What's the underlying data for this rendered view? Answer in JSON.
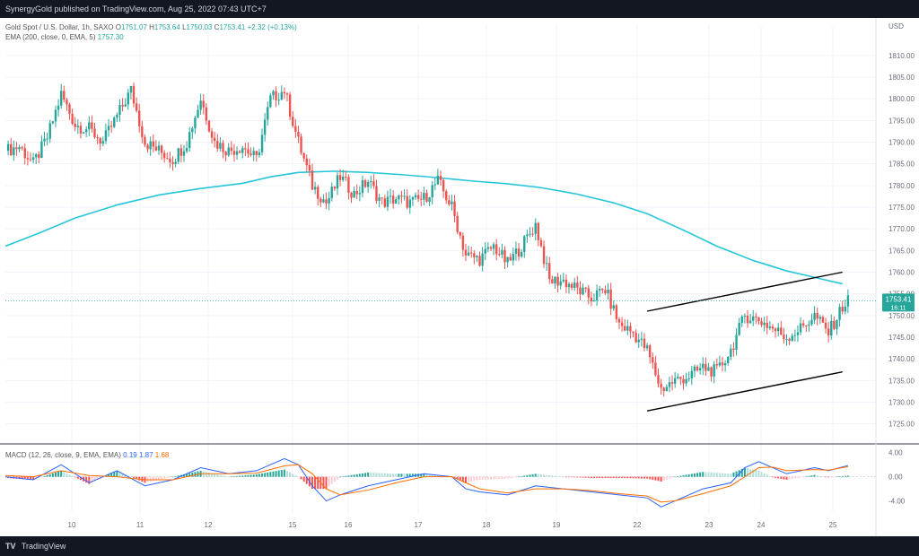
{
  "header": {
    "published": "SynergyGold published on TradingView.com, Aug 25, 2022 07:43 UTC+7"
  },
  "legend": {
    "symbol": "Gold Spot / U.S. Dollar, 1h, SAXO",
    "open_label": "O",
    "open": "1751.07",
    "high_label": "H",
    "high": "1753.64",
    "low_label": "L",
    "low": "1750.03",
    "close_label": "C",
    "close": "1753.41",
    "change": "+2.32 (+0.13%)",
    "ema_label": "EMA (200, close, 0, EMA, 5)",
    "ema_value": "1757.30",
    "macd_label": "MACD (12, 26, close, 9, EMA, EMA)",
    "macd_values": [
      "0.19",
      "1.87",
      "1.68"
    ]
  },
  "price_tag": {
    "price": "1753.41",
    "countdown": "16:11"
  },
  "footer": {
    "brand": "TradingView"
  },
  "colors": {
    "up": "#26a69a",
    "down": "#ef5350",
    "ema": "#26c6da",
    "macd": "#2962ff",
    "signal": "#ff6d00",
    "channel": "#000000"
  },
  "chart_data": {
    "type": "candlestick",
    "currency": "USD",
    "y_ticks": [
      "1810.00",
      "1805.00",
      "1800.00",
      "1795.00",
      "1790.00",
      "1785.00",
      "1780.00",
      "1775.00",
      "1770.00",
      "1765.00",
      "1760.00",
      "1755.00",
      "1750.00",
      "1745.00",
      "1740.00",
      "1735.00",
      "1730.00",
      "1725.00"
    ],
    "ylim": [
      1721,
      1817
    ],
    "x_ticks": [
      "10",
      "11",
      "12",
      "15",
      "16",
      "17",
      "18",
      "19",
      "22",
      "23",
      "24",
      "25"
    ],
    "last_price": 1753.41,
    "ema_200": [
      [
        0,
        1766
      ],
      [
        12,
        1769
      ],
      [
        25,
        1772.5
      ],
      [
        40,
        1775.5
      ],
      [
        55,
        1777.8
      ],
      [
        70,
        1779.3
      ],
      [
        85,
        1780.5
      ],
      [
        95,
        1782
      ],
      [
        105,
        1783
      ],
      [
        118,
        1783.3
      ],
      [
        130,
        1783
      ],
      [
        142,
        1782.5
      ],
      [
        155,
        1781.8
      ],
      [
        168,
        1781
      ],
      [
        180,
        1780.4
      ],
      [
        192,
        1779.5
      ],
      [
        205,
        1778
      ],
      [
        218,
        1776
      ],
      [
        230,
        1773.5
      ],
      [
        242,
        1770
      ],
      [
        255,
        1766
      ],
      [
        268,
        1762.7
      ],
      [
        280,
        1760.3
      ],
      [
        292,
        1758.5
      ],
      [
        300,
        1757.3
      ]
    ],
    "channel_upper": [
      [
        230,
        1751
      ],
      [
        300,
        1760
      ]
    ],
    "channel_lower": [
      [
        230,
        1728
      ],
      [
        300,
        1737
      ]
    ],
    "price_path": [
      [
        0,
        1788
      ],
      [
        5,
        1789
      ],
      [
        10,
        1785
      ],
      [
        15,
        1791
      ],
      [
        20,
        1801
      ],
      [
        25,
        1794
      ],
      [
        30,
        1793
      ],
      [
        35,
        1790
      ],
      [
        40,
        1796
      ],
      [
        45,
        1802
      ],
      [
        50,
        1790
      ],
      [
        55,
        1788
      ],
      [
        60,
        1786
      ],
      [
        65,
        1790
      ],
      [
        70,
        1800
      ],
      [
        75,
        1790
      ],
      [
        80,
        1788
      ],
      [
        85,
        1789
      ],
      [
        90,
        1786
      ],
      [
        95,
        1800
      ],
      [
        100,
        1802
      ],
      [
        105,
        1790
      ],
      [
        110,
        1780
      ],
      [
        115,
        1776
      ],
      [
        120,
        1782
      ],
      [
        125,
        1778
      ],
      [
        130,
        1781
      ],
      [
        135,
        1776
      ],
      [
        140,
        1777
      ],
      [
        145,
        1776
      ],
      [
        150,
        1777
      ],
      [
        155,
        1781
      ],
      [
        160,
        1775
      ],
      [
        165,
        1764
      ],
      [
        170,
        1763
      ],
      [
        175,
        1766
      ],
      [
        180,
        1762
      ],
      [
        185,
        1766
      ],
      [
        190,
        1771
      ],
      [
        195,
        1758
      ],
      [
        200,
        1758
      ],
      [
        205,
        1756
      ],
      [
        210,
        1754
      ],
      [
        215,
        1756
      ],
      [
        220,
        1748
      ],
      [
        225,
        1746
      ],
      [
        230,
        1742
      ],
      [
        235,
        1733
      ],
      [
        240,
        1735
      ],
      [
        245,
        1736
      ],
      [
        250,
        1738
      ],
      [
        255,
        1737
      ],
      [
        260,
        1742
      ],
      [
        265,
        1750
      ],
      [
        270,
        1749
      ],
      [
        275,
        1747
      ],
      [
        280,
        1745
      ],
      [
        285,
        1747
      ],
      [
        290,
        1750
      ],
      [
        295,
        1746
      ],
      [
        300,
        1752
      ],
      [
        302,
        1753.41
      ]
    ],
    "macd_y_ticks": [
      "4.00",
      "0.00",
      "-4.00"
    ],
    "macd_ylim": [
      -6,
      5
    ],
    "macd_line": [
      [
        0,
        0
      ],
      [
        10,
        -0.5
      ],
      [
        20,
        2
      ],
      [
        30,
        -1
      ],
      [
        40,
        1
      ],
      [
        50,
        -1.5
      ],
      [
        60,
        -0.5
      ],
      [
        70,
        1.5
      ],
      [
        80,
        0.5
      ],
      [
        90,
        1
      ],
      [
        100,
        3
      ],
      [
        105,
        2
      ],
      [
        110,
        -1.5
      ],
      [
        115,
        -4
      ],
      [
        120,
        -3
      ],
      [
        130,
        -1.5
      ],
      [
        140,
        -0.5
      ],
      [
        150,
        0.5
      ],
      [
        160,
        0
      ],
      [
        165,
        -2
      ],
      [
        170,
        -2.5
      ],
      [
        180,
        -3
      ],
      [
        190,
        -1.5
      ],
      [
        200,
        -2
      ],
      [
        210,
        -2.5
      ],
      [
        220,
        -3
      ],
      [
        230,
        -3.5
      ],
      [
        235,
        -5
      ],
      [
        240,
        -4
      ],
      [
        250,
        -2
      ],
      [
        260,
        -1
      ],
      [
        265,
        1.5
      ],
      [
        270,
        2.5
      ],
      [
        275,
        1.5
      ],
      [
        280,
        0.5
      ],
      [
        290,
        1.5
      ],
      [
        295,
        1
      ],
      [
        302,
        1.87
      ]
    ],
    "signal_line": [
      [
        0,
        0.2
      ],
      [
        10,
        0
      ],
      [
        20,
        1
      ],
      [
        30,
        0.2
      ],
      [
        40,
        0
      ],
      [
        50,
        -0.5
      ],
      [
        60,
        -0.5
      ],
      [
        70,
        0.5
      ],
      [
        80,
        0.5
      ],
      [
        90,
        0.6
      ],
      [
        100,
        1.8
      ],
      [
        105,
        2
      ],
      [
        110,
        0.5
      ],
      [
        115,
        -2
      ],
      [
        120,
        -3
      ],
      [
        130,
        -2.2
      ],
      [
        140,
        -1
      ],
      [
        150,
        0
      ],
      [
        160,
        0
      ],
      [
        165,
        -1
      ],
      [
        170,
        -2
      ],
      [
        180,
        -2.7
      ],
      [
        190,
        -2
      ],
      [
        200,
        -2
      ],
      [
        210,
        -2.3
      ],
      [
        220,
        -2.8
      ],
      [
        230,
        -3.2
      ],
      [
        235,
        -4.2
      ],
      [
        240,
        -4
      ],
      [
        250,
        -2.8
      ],
      [
        260,
        -1.5
      ],
      [
        265,
        0
      ],
      [
        270,
        1.5
      ],
      [
        275,
        1.6
      ],
      [
        280,
        1
      ],
      [
        290,
        1.2
      ],
      [
        295,
        1.1
      ],
      [
        302,
        1.68
      ]
    ]
  }
}
